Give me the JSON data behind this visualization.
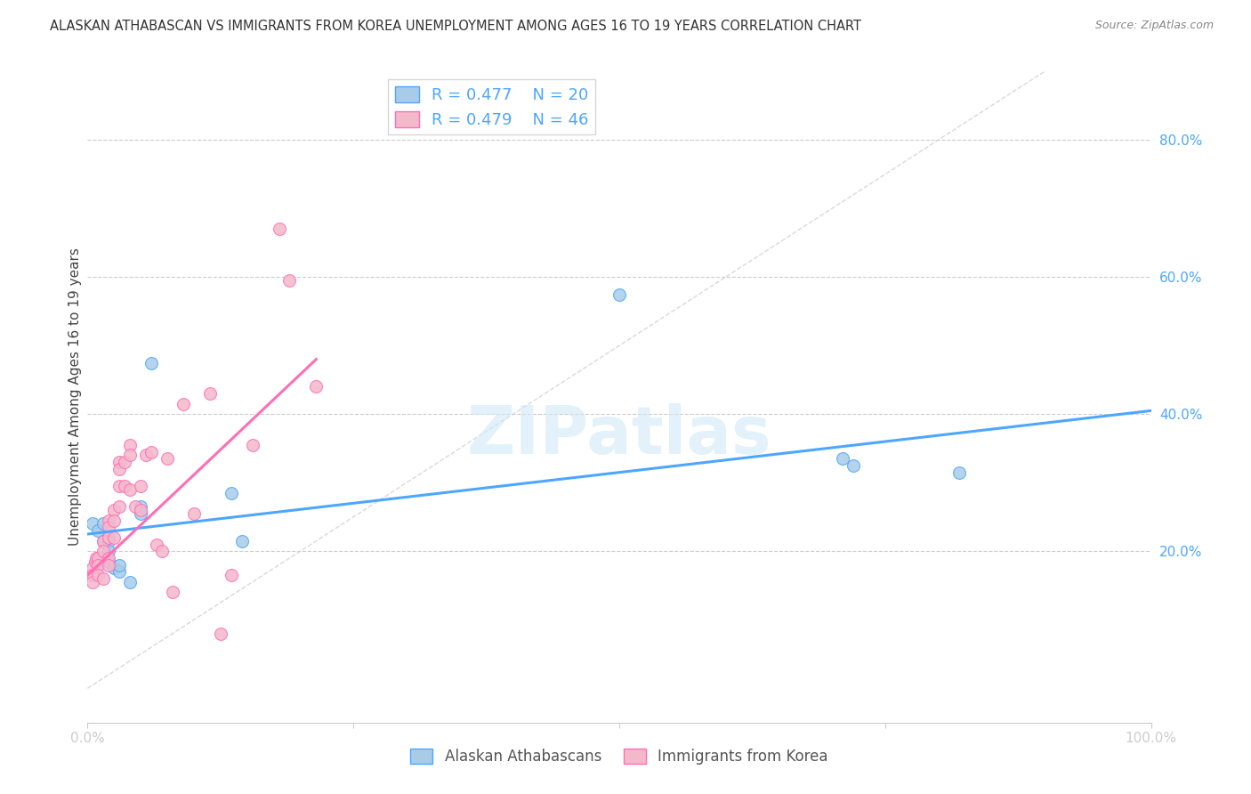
{
  "title": "ALASKAN ATHABASCAN VS IMMIGRANTS FROM KOREA UNEMPLOYMENT AMONG AGES 16 TO 19 YEARS CORRELATION CHART",
  "source": "Source: ZipAtlas.com",
  "ylabel": "Unemployment Among Ages 16 to 19 years",
  "yticks": [
    "20.0%",
    "40.0%",
    "60.0%",
    "80.0%"
  ],
  "ytick_vals": [
    0.2,
    0.4,
    0.6,
    0.8
  ],
  "xlim": [
    0.0,
    1.0
  ],
  "ylim": [
    -0.05,
    0.9
  ],
  "blue_color": "#a8cce8",
  "pink_color": "#f4b8cb",
  "blue_line_color": "#4da6ff",
  "pink_line_color": "#ff6eb4",
  "diagonal_color": "#d0d0d0",
  "legend_R_blue": "R = 0.477",
  "legend_N_blue": "N = 20",
  "legend_R_pink": "R = 0.479",
  "legend_N_pink": "N = 46",
  "legend_label_blue": "Alaskan Athabascans",
  "legend_label_pink": "Immigrants from Korea",
  "watermark": "ZIPatlas",
  "blue_points_x": [
    0.005,
    0.01,
    0.015,
    0.02,
    0.02,
    0.02,
    0.025,
    0.03,
    0.03,
    0.04,
    0.05,
    0.05,
    0.06,
    0.135,
    0.145,
    0.5,
    0.71,
    0.72,
    0.82,
    0.015
  ],
  "blue_points_y": [
    0.24,
    0.23,
    0.215,
    0.215,
    0.2,
    0.185,
    0.175,
    0.17,
    0.18,
    0.155,
    0.265,
    0.255,
    0.475,
    0.285,
    0.215,
    0.575,
    0.335,
    0.325,
    0.315,
    0.24
  ],
  "pink_points_x": [
    0.005,
    0.005,
    0.005,
    0.007,
    0.008,
    0.01,
    0.01,
    0.01,
    0.015,
    0.015,
    0.015,
    0.02,
    0.02,
    0.02,
    0.02,
    0.02,
    0.025,
    0.025,
    0.025,
    0.03,
    0.03,
    0.03,
    0.03,
    0.035,
    0.035,
    0.04,
    0.04,
    0.04,
    0.045,
    0.05,
    0.05,
    0.055,
    0.06,
    0.065,
    0.07,
    0.075,
    0.08,
    0.09,
    0.1,
    0.115,
    0.125,
    0.135,
    0.155,
    0.18,
    0.19,
    0.215
  ],
  "pink_points_y": [
    0.175,
    0.165,
    0.155,
    0.185,
    0.19,
    0.19,
    0.18,
    0.165,
    0.215,
    0.2,
    0.16,
    0.245,
    0.235,
    0.22,
    0.19,
    0.18,
    0.26,
    0.245,
    0.22,
    0.33,
    0.32,
    0.295,
    0.265,
    0.33,
    0.295,
    0.355,
    0.34,
    0.29,
    0.265,
    0.295,
    0.26,
    0.34,
    0.345,
    0.21,
    0.2,
    0.335,
    0.14,
    0.415,
    0.255,
    0.43,
    0.08,
    0.165,
    0.355,
    0.67,
    0.595,
    0.44
  ],
  "blue_trend_x": [
    0.0,
    1.0
  ],
  "blue_trend_y": [
    0.225,
    0.405
  ],
  "pink_trend_x": [
    0.0,
    0.215
  ],
  "pink_trend_y": [
    0.165,
    0.48
  ],
  "bg_color": "#ffffff",
  "grid_color": "#cccccc",
  "title_color": "#333333",
  "axis_label_color": "#4da6ff",
  "legend_text_color_blue": "#4da6ff",
  "legend_text_color_pink": "#ff6eb4",
  "legend_text_color_n_blue": "#22cc00",
  "legend_text_color_n_pink": "#22cc00"
}
